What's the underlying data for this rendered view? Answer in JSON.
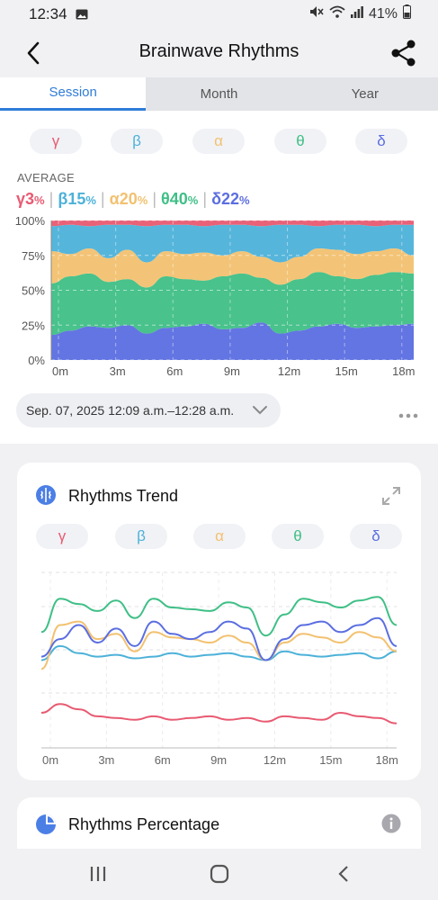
{
  "status_bar": {
    "time": "12:34",
    "battery": "41%"
  },
  "header": {
    "title": "Brainwave Rhythms"
  },
  "tabs": [
    {
      "label": "Session",
      "active": true
    },
    {
      "label": "Month",
      "active": false
    },
    {
      "label": "Year",
      "active": false
    }
  ],
  "rhythms": [
    {
      "symbol": "γ",
      "color": "#e85a71"
    },
    {
      "symbol": "β",
      "color": "#4db1d9"
    },
    {
      "symbol": "α",
      "color": "#f2c170"
    },
    {
      "symbol": "θ",
      "color": "#3fbf86"
    },
    {
      "symbol": "δ",
      "color": "#5b6ee0"
    }
  ],
  "average": {
    "label": "AVERAGE",
    "items": [
      {
        "symbol": "γ",
        "value": "3",
        "unit": "%"
      },
      {
        "symbol": "β",
        "value": "15",
        "unit": "%"
      },
      {
        "symbol": "α",
        "value": "20",
        "unit": "%"
      },
      {
        "symbol": "θ",
        "value": "40",
        "unit": "%"
      },
      {
        "symbol": "δ",
        "value": "22",
        "unit": "%"
      }
    ]
  },
  "session_range": "Sep. 07, 2025 12:09 a.m.–12:28 a.m.",
  "trend_card": {
    "title": "Rhythms Trend"
  },
  "percentage_card": {
    "title": "Rhythms Percentage"
  },
  "chart_data": [
    {
      "type": "area",
      "stacked": true,
      "title": "",
      "x_ticks": [
        "0m",
        "3m",
        "6m",
        "9m",
        "12m",
        "15m",
        "18m"
      ],
      "y_ticks": [
        "0%",
        "25%",
        "50%",
        "75%",
        "100%"
      ],
      "ylim": [
        0,
        100
      ],
      "series_order_bottom_to_top": [
        "δ",
        "θ",
        "α",
        "β",
        "γ"
      ],
      "x_minutes": [
        0,
        1,
        2,
        3,
        4,
        5,
        6,
        7,
        8,
        9,
        10,
        11,
        12,
        13,
        14,
        15,
        16,
        17,
        18,
        19
      ],
      "boundaries_percent": {
        "δ_top": [
          18,
          21,
          24,
          23,
          25,
          19,
          23,
          24,
          26,
          22,
          23,
          27,
          19,
          21,
          24,
          26,
          23,
          24,
          25,
          26
        ],
        "θ_top": [
          55,
          60,
          62,
          56,
          58,
          52,
          60,
          58,
          57,
          60,
          62,
          59,
          54,
          58,
          63,
          60,
          58,
          61,
          63,
          62
        ],
        "α_top": [
          78,
          76,
          80,
          73,
          79,
          70,
          78,
          76,
          77,
          75,
          78,
          74,
          70,
          74,
          80,
          79,
          76,
          78,
          80,
          75
        ],
        "β_top": [
          96,
          97,
          96,
          97,
          97,
          96,
          97,
          97,
          96,
          97,
          97,
          96,
          97,
          97,
          96,
          97,
          97,
          96,
          97,
          97
        ],
        "γ_top": [
          100,
          100,
          100,
          100,
          100,
          100,
          100,
          100,
          100,
          100,
          100,
          100,
          100,
          100,
          100,
          100,
          100,
          100,
          100,
          100
        ]
      },
      "grid": true
    },
    {
      "type": "line",
      "title": "Rhythms Trend",
      "x_ticks": [
        "0m",
        "3m",
        "6m",
        "9m",
        "12m",
        "15m",
        "18m"
      ],
      "x_minutes": [
        0,
        1,
        2,
        3,
        4,
        5,
        6,
        7,
        8,
        9,
        10,
        11,
        12,
        13,
        14,
        15,
        16,
        17,
        18,
        19
      ],
      "y_range": [
        0,
        100
      ],
      "grid": true,
      "series": [
        {
          "name": "γ",
          "values": [
            20,
            25,
            22,
            18,
            17,
            16,
            18,
            16,
            17,
            18,
            16,
            17,
            15,
            18,
            17,
            16,
            20,
            18,
            17,
            14
          ]
        },
        {
          "name": "β",
          "values": [
            50,
            58,
            54,
            52,
            53,
            51,
            52,
            54,
            52,
            53,
            54,
            52,
            50,
            55,
            53,
            52,
            53,
            54,
            51,
            55
          ]
        },
        {
          "name": "α",
          "values": [
            45,
            70,
            72,
            62,
            65,
            55,
            66,
            63,
            62,
            60,
            64,
            60,
            50,
            60,
            65,
            63,
            60,
            66,
            63,
            55
          ]
        },
        {
          "name": "θ",
          "values": [
            66,
            85,
            82,
            78,
            84,
            74,
            85,
            80,
            79,
            78,
            83,
            80,
            64,
            76,
            85,
            83,
            80,
            84,
            86,
            70
          ]
        },
        {
          "name": "δ",
          "values": [
            52,
            62,
            70,
            60,
            68,
            58,
            72,
            65,
            62,
            66,
            72,
            68,
            50,
            62,
            70,
            72,
            66,
            70,
            74,
            58
          ]
        }
      ]
    }
  ]
}
